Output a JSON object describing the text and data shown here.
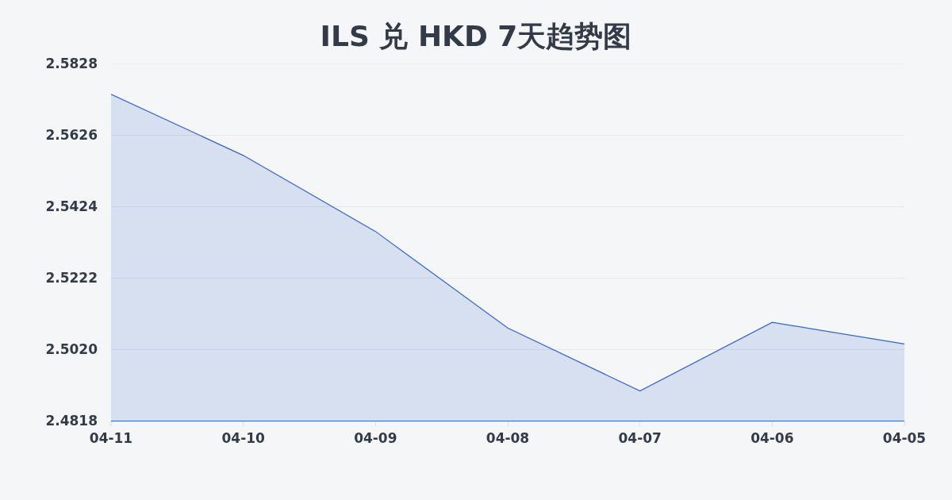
{
  "chart_data": {
    "type": "area",
    "title": "ILS 兑 HKD 7天趋势图",
    "categories": [
      "04-11",
      "04-10",
      "04-09",
      "04-08",
      "04-07",
      "04-06",
      "04-05"
    ],
    "values": [
      2.5741,
      2.5568,
      2.5353,
      2.508,
      2.4902,
      2.5096,
      2.5035
    ],
    "color": "#3366cc",
    "marker": "none",
    "ylim": [
      2.4818,
      2.5828
    ],
    "yticks": [
      2.4818,
      {
        "value": 2.502,
        "label": "2.5020"
      },
      2.5222,
      2.5424,
      2.5626,
      2.5828
    ],
    "grid": "y"
  }
}
